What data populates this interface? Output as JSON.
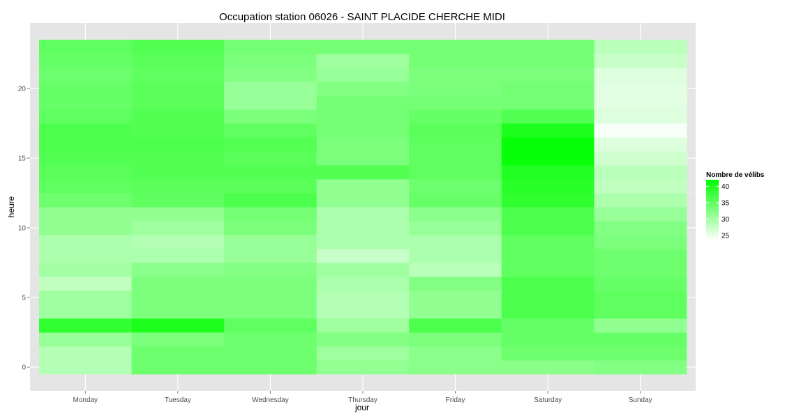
{
  "chart_data": {
    "type": "heatmap",
    "title": "Occupation station 06026 - SAINT PLACIDE CHERCHE MIDI",
    "xlabel": "jour",
    "ylabel": "heure",
    "categories": [
      "Monday",
      "Tuesday",
      "Wednesday",
      "Thursday",
      "Friday",
      "Saturday",
      "Sunday"
    ],
    "y_values": [
      0,
      1,
      2,
      3,
      4,
      5,
      6,
      7,
      8,
      9,
      10,
      11,
      12,
      13,
      14,
      15,
      16,
      17,
      18,
      19,
      20,
      21,
      22,
      23
    ],
    "y_ticks": [
      0,
      5,
      10,
      15,
      20
    ],
    "ylim": [
      -0.5,
      23.5
    ],
    "grid": true,
    "legend": {
      "title": "Nombre de vélibs",
      "ticks": [
        25,
        30,
        35,
        40
      ],
      "range": [
        23.5,
        42
      ],
      "low_color": "#ffffff",
      "high_color": "#00ff00",
      "placement": "right"
    },
    "values": {
      "Monday": [
        29.0,
        29.0,
        31.0,
        38.5,
        30.5,
        30.5,
        28.0,
        30.0,
        29.5,
        29.5,
        31.5,
        31.5,
        34.0,
        35.0,
        35.5,
        36.0,
        36.5,
        36.5,
        35.0,
        34.5,
        34.5,
        34.0,
        34.5,
        35.0
      ],
      "Tuesday": [
        34.0,
        34.0,
        33.0,
        40.0,
        33.0,
        33.0,
        33.0,
        32.0,
        29.5,
        29.0,
        30.5,
        31.5,
        35.0,
        35.5,
        36.0,
        36.0,
        36.5,
        36.0,
        36.0,
        35.5,
        35.5,
        35.0,
        35.5,
        36.0
      ],
      "Wednesday": [
        34.0,
        34.0,
        34.0,
        35.0,
        33.0,
        33.0,
        33.0,
        32.5,
        31.0,
        31.0,
        33.0,
        33.5,
        36.5,
        35.5,
        36.0,
        35.5,
        36.0,
        35.0,
        33.0,
        31.0,
        31.0,
        32.5,
        33.0,
        33.5
      ],
      "Thursday": [
        31.5,
        30.5,
        32.5,
        30.5,
        29.0,
        29.0,
        29.5,
        30.5,
        27.5,
        29.5,
        29.5,
        29.5,
        31.5,
        31.5,
        36.0,
        33.0,
        33.0,
        33.5,
        33.5,
        33.5,
        32.5,
        31.0,
        30.5,
        33.5
      ],
      "Friday": [
        32.0,
        32.0,
        33.0,
        36.5,
        31.5,
        31.5,
        32.5,
        28.5,
        29.5,
        29.5,
        31.0,
        32.0,
        34.5,
        34.0,
        35.0,
        35.0,
        35.0,
        35.5,
        34.5,
        33.5,
        33.0,
        33.0,
        33.5,
        33.5
      ],
      "Saturday": [
        32.0,
        34.0,
        34.5,
        34.5,
        36.5,
        36.5,
        36.5,
        35.0,
        35.0,
        35.0,
        36.5,
        36.5,
        38.5,
        39.0,
        39.5,
        41.5,
        41.5,
        40.0,
        36.0,
        33.5,
        33.5,
        33.0,
        33.5,
        33.5
      ],
      "Sunday": [
        32.5,
        34.0,
        34.5,
        31.5,
        35.0,
        35.0,
        34.5,
        34.0,
        34.0,
        33.0,
        32.5,
        31.0,
        29.5,
        28.0,
        28.5,
        27.0,
        26.0,
        24.0,
        26.0,
        25.5,
        25.5,
        26.0,
        27.5,
        28.5
      ]
    }
  }
}
